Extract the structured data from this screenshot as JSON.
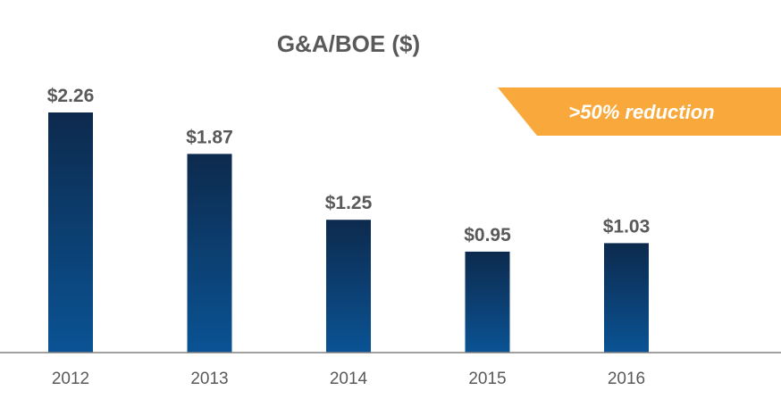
{
  "chart_data": {
    "type": "bar",
    "title": "G&A/BOE ($)",
    "xlabel": "",
    "ylabel": "",
    "categories": [
      "2012",
      "2013",
      "2014",
      "2015",
      "2016"
    ],
    "values": [
      2.26,
      1.87,
      1.25,
      0.95,
      1.03
    ],
    "data_labels": [
      "$2.26",
      "$1.87",
      "$1.25",
      "$0.95",
      "$1.03"
    ],
    "ylim": [
      0,
      2.26
    ],
    "grid": false,
    "legend": "none",
    "annotation": ">50% reduction",
    "colors": {
      "bar_top": "#0d2a4d",
      "bar_bottom": "#0a5394",
      "callout": "#f9a93b",
      "text": "#595959",
      "axis": "#808080"
    }
  }
}
